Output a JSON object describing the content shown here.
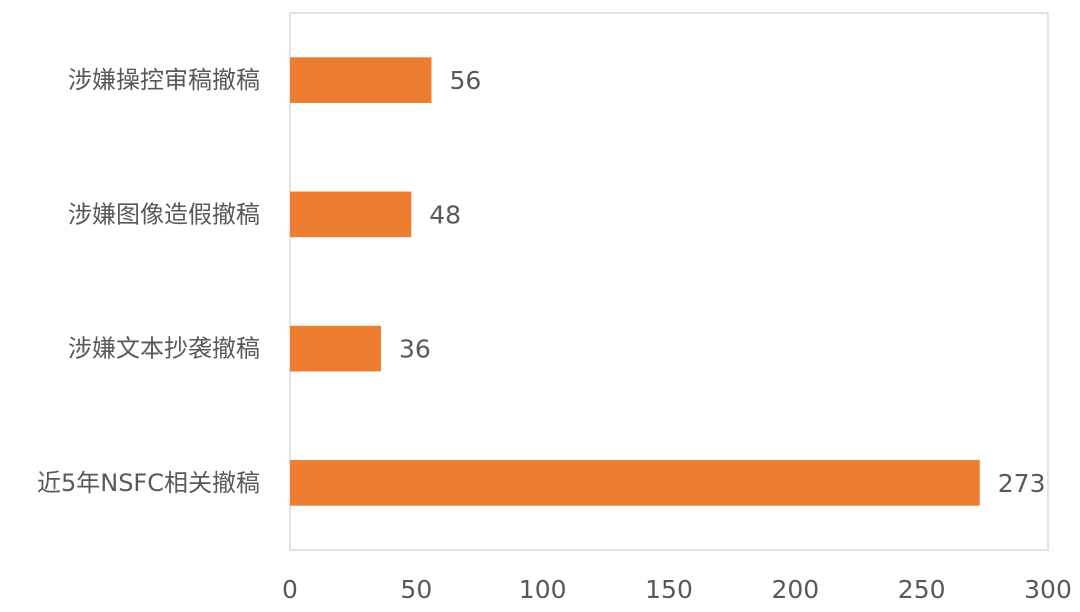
{
  "chart_data": {
    "type": "bar",
    "orientation": "horizontal",
    "categories": [
      "涉嫌操控审稿撤稿",
      "涉嫌图像造假撤稿",
      "涉嫌文本抄袭撤稿",
      "近5年NSFC相关撤稿"
    ],
    "values": [
      56,
      48,
      36,
      273
    ],
    "color": "#ed7d31",
    "xlim": [
      0,
      300
    ],
    "xticks": [
      0,
      50,
      100,
      150,
      200,
      250,
      300
    ],
    "grid": false
  }
}
